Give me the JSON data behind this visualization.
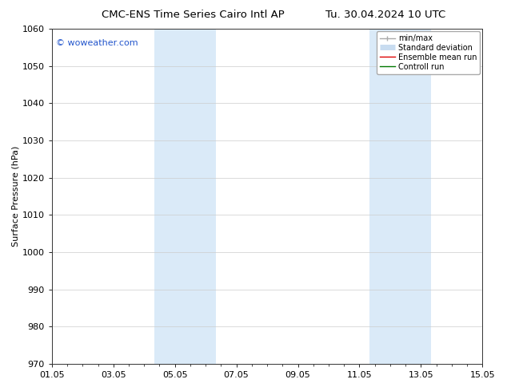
{
  "title_left": "CMC-ENS Time Series Cairo Intl AP",
  "title_right": "Tu. 30.04.2024 10 UTC",
  "ylabel": "Surface Pressure (hPa)",
  "ylim": [
    970,
    1060
  ],
  "yticks": [
    970,
    980,
    990,
    1000,
    1010,
    1020,
    1030,
    1040,
    1050,
    1060
  ],
  "xlim": [
    0,
    14
  ],
  "xtick_labels": [
    "01.05",
    "03.05",
    "05.05",
    "07.05",
    "09.05",
    "11.05",
    "13.05",
    "15.05"
  ],
  "xtick_positions": [
    0,
    2,
    4,
    6,
    8,
    10,
    12,
    14
  ],
  "shaded_regions": [
    {
      "xstart": 3.33,
      "xend": 4.67,
      "color": "#daeaf8"
    },
    {
      "xstart": 4.67,
      "xend": 5.33,
      "color": "#daeaf8"
    },
    {
      "xstart": 10.33,
      "xend": 11.0,
      "color": "#daeaf8"
    },
    {
      "xstart": 11.0,
      "xend": 12.33,
      "color": "#daeaf8"
    }
  ],
  "watermark_text": "© woweather.com",
  "watermark_color": "#2255cc",
  "background_color": "#ffffff",
  "plot_bg_color": "#ffffff",
  "grid_color": "#cccccc",
  "legend_items": [
    {
      "label": "min/max",
      "color": "#aaaaaa",
      "lw": 1.0,
      "style": "line_with_bar"
    },
    {
      "label": "Standard deviation",
      "color": "#c8dcf0",
      "lw": 5,
      "style": "thick"
    },
    {
      "label": "Ensemble mean run",
      "color": "#dd0000",
      "lw": 1.0,
      "style": "line"
    },
    {
      "label": "Controll run",
      "color": "#007700",
      "lw": 1.0,
      "style": "line"
    }
  ],
  "title_fontsize": 9.5,
  "tick_fontsize": 8,
  "legend_fontsize": 7,
  "ylabel_fontsize": 8,
  "watermark_fontsize": 8
}
